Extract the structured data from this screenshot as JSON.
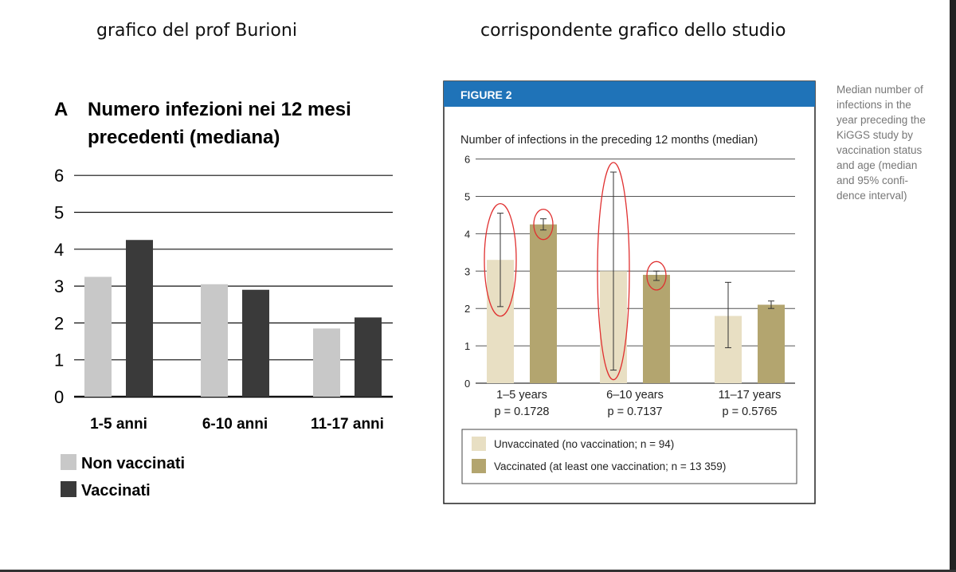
{
  "headings": {
    "left": "grafico del prof Burioni",
    "right": "corrispondente grafico dello studio"
  },
  "colors": {
    "left_unvaccinated": "#c8c8c8",
    "left_vaccinated": "#3a3a3a",
    "right_unvaccinated": "#e8dfc3",
    "right_vaccinated": "#b3a56f",
    "figure_banner": "#1f73b8",
    "highlight_circle": "#e03030"
  },
  "chart_data": [
    {
      "type": "bar",
      "panel_letter": "A",
      "title_line1": "Numero infezioni nei 12 mesi",
      "title_line2": "precedenti (mediana)",
      "categories": [
        "1-5 anni",
        "6-10 anni",
        "11-17 anni"
      ],
      "series": [
        {
          "name": "Non vaccinati",
          "values": [
            3.25,
            3.05,
            1.85
          ]
        },
        {
          "name": "Vaccinati",
          "values": [
            4.25,
            2.9,
            2.15
          ]
        }
      ],
      "ylim": [
        0,
        6
      ],
      "yticks": [
        "0",
        "1",
        "2",
        "3",
        "4",
        "5",
        "6"
      ],
      "grid": true,
      "legend_position": "bottom-left"
    },
    {
      "type": "bar",
      "figure_label": "FIGURE 2",
      "title": "Number of infections in the preceding 12 months (median)",
      "categories": [
        "1–5 years",
        "6–10 years",
        "11–17 years"
      ],
      "p_values": [
        "p = 0.1728",
        "p = 0.7137",
        "p = 0.5765"
      ],
      "series": [
        {
          "name": "Unvaccinated (no vaccination; n = 94)",
          "values": [
            3.3,
            3.0,
            1.8
          ],
          "ci_low": [
            2.05,
            0.35,
            0.95
          ],
          "ci_high": [
            4.55,
            5.65,
            2.7
          ]
        },
        {
          "name": "Vaccinated (at least one vaccination; n = 13 359)",
          "values": [
            4.25,
            2.9,
            2.1
          ],
          "ci_low": [
            4.1,
            2.75,
            2.0
          ],
          "ci_high": [
            4.4,
            3.0,
            2.2
          ]
        }
      ],
      "highlighted_ci": [
        [
          0,
          0
        ],
        [
          1,
          0
        ],
        [
          0,
          1
        ],
        [
          1,
          1
        ]
      ],
      "ylim": [
        0,
        6
      ],
      "yticks": [
        "0",
        "1",
        "2",
        "3",
        "4",
        "5",
        "6"
      ],
      "grid": true,
      "legend_position": "bottom",
      "caption": "Median number of infections in the year preceding the KiGGS study by vaccination status and age (median and 95% confi-dence interval)",
      "caption_lines": [
        "Median number of",
        "infections in the",
        "year preceding the",
        "KiGGS study by",
        "vaccination status",
        "and age (median",
        "and 95% confi-",
        "dence interval)"
      ]
    }
  ]
}
